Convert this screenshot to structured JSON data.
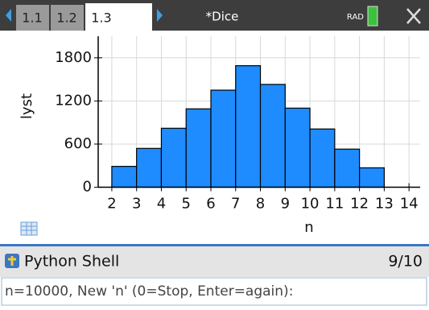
{
  "status_bar": {
    "tabs": [
      "1.1",
      "1.2",
      "1.3"
    ],
    "document_title": "*Dice",
    "mode": "RAD"
  },
  "chart_data": {
    "type": "histogram",
    "x_label": "n",
    "y_label": "lyst",
    "bins": [
      2,
      3,
      4,
      5,
      6,
      7,
      8,
      9,
      10,
      11,
      12,
      13
    ],
    "values": [
      290,
      540,
      820,
      1090,
      1350,
      1690,
      1430,
      1100,
      810,
      530,
      270
    ],
    "color": "#1e8cff",
    "xlim": [
      1.45,
      14.45
    ],
    "xticks": [
      2,
      3,
      4,
      5,
      6,
      7,
      8,
      9,
      10,
      11,
      12,
      13,
      14
    ],
    "ylim": [
      -50,
      2100
    ],
    "yticks": [
      0,
      600,
      1200,
      1800
    ],
    "grid": true
  },
  "shell": {
    "title": "Python Shell",
    "page": "9/10",
    "prompt": "n=10000, New 'n' (0=Stop, Enter=again):"
  }
}
